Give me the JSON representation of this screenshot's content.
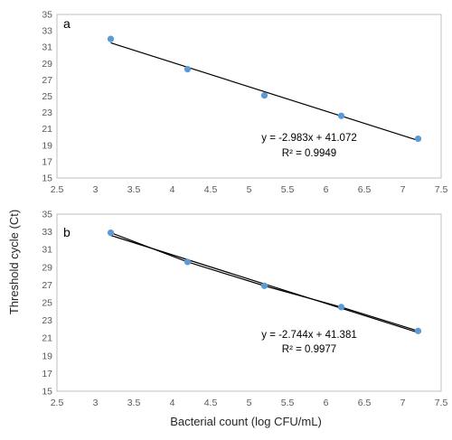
{
  "axis_labels": {
    "y": "Threshold cycle (Ct)",
    "x": "Bacterial count (log CFU/mL)"
  },
  "colors": {
    "marker": "#5B9BD5",
    "trendline": "#000000",
    "axis": "#bfbfbf"
  },
  "chart_data": [
    {
      "type": "scatter",
      "panel": "a",
      "x": [
        3.2,
        4.2,
        5.2,
        6.2,
        7.2
      ],
      "y": [
        32.0,
        28.3,
        25.1,
        22.6,
        19.8
      ],
      "xlim": [
        2.5,
        7.5
      ],
      "ylim": [
        15,
        35
      ],
      "xticks": [
        2.5,
        3,
        3.5,
        4,
        4.5,
        5,
        5.5,
        6,
        6.5,
        7,
        7.5
      ],
      "yticks": [
        15,
        17,
        19,
        21,
        23,
        25,
        27,
        29,
        31,
        33,
        35
      ],
      "trendline": {
        "slope": -2.983,
        "intercept": 41.072
      },
      "equation": "y = -2.983x + 41.072",
      "r2": "R² = 0.9949",
      "grid": false,
      "legend": "none"
    },
    {
      "type": "scatter",
      "panel": "b",
      "x": [
        3.2,
        4.2,
        5.2,
        6.2,
        7.2
      ],
      "y": [
        32.9,
        29.6,
        26.9,
        24.5,
        21.8
      ],
      "xlim": [
        2.5,
        7.5
      ],
      "ylim": [
        15,
        35
      ],
      "xticks": [
        2.5,
        3,
        3.5,
        4,
        4.5,
        5,
        5.5,
        6,
        6.5,
        7,
        7.5
      ],
      "yticks": [
        15,
        17,
        19,
        21,
        23,
        25,
        27,
        29,
        31,
        33,
        35
      ],
      "trendline": {
        "slope": -2.744,
        "intercept": 41.381
      },
      "equation": "y = -2.744x + 41.381",
      "r2": "R² = 0.9977",
      "grid": false,
      "legend": "none"
    }
  ]
}
